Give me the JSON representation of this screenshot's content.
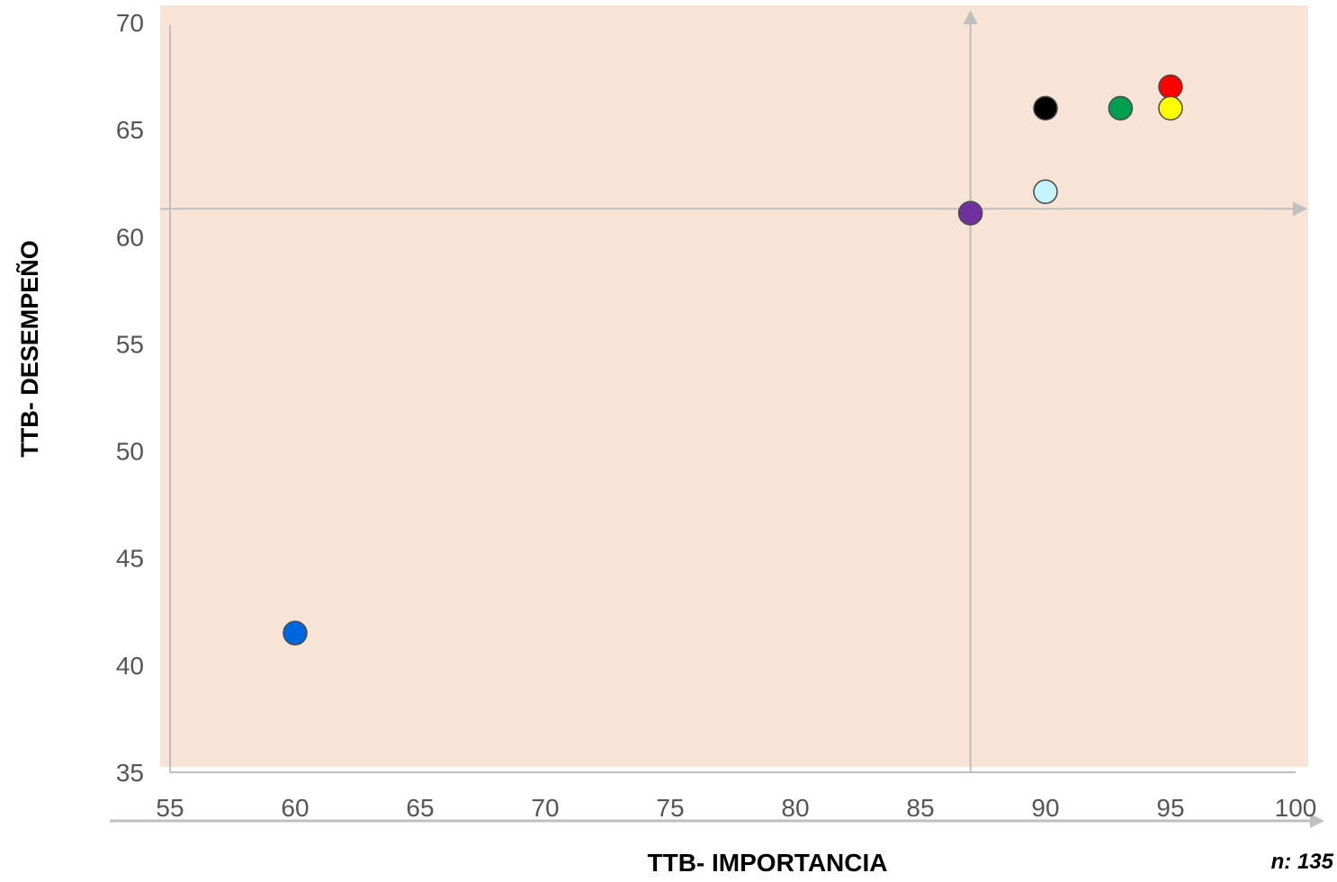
{
  "chart_data": {
    "type": "scatter",
    "xlabel": "TTB- IMPORTANCIA",
    "ylabel": "TTB- DESEMPEÑO",
    "note": "n: 135",
    "xlim": [
      55,
      100
    ],
    "ylim": [
      35,
      70
    ],
    "x_ticks": [
      "55",
      "60",
      "65",
      "70",
      "75",
      "80",
      "85",
      "90",
      "95",
      "100"
    ],
    "y_ticks": [
      "70",
      "65",
      "60",
      "55",
      "50",
      "45",
      "40",
      "35"
    ],
    "crosshair": {
      "x": 87,
      "y": 61.3
    },
    "plot_background": "#f8e4d6",
    "axis_color": "#bfbfbf",
    "grid": false,
    "legend": "none",
    "points": [
      {
        "x": 95,
        "y": 67,
        "color": "#ff0000"
      },
      {
        "x": 95,
        "y": 66,
        "color": "#ffff00"
      },
      {
        "x": 90,
        "y": 66,
        "color": "#000000"
      },
      {
        "x": 93,
        "y": 66,
        "color": "#00a050"
      },
      {
        "x": 90,
        "y": 62.1,
        "color": "#c4f4ff"
      },
      {
        "x": 87,
        "y": 61.1,
        "color": "#7030a0"
      },
      {
        "x": 60,
        "y": 41.5,
        "color": "#0066e0"
      }
    ]
  }
}
